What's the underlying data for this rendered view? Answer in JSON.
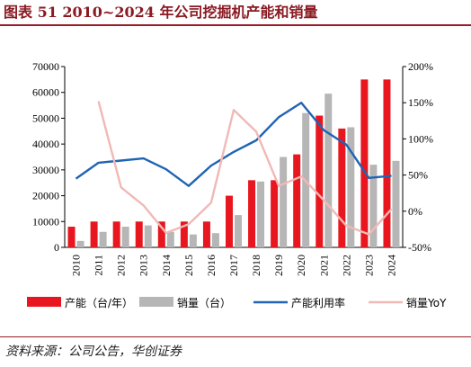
{
  "figure": {
    "title": "图表 51   2010~2024 年公司挖掘机产能和销量",
    "source": "资料来源：公司公告，华创证券"
  },
  "chart_data": {
    "type": "bar",
    "categories": [
      "2010",
      "2011",
      "2012",
      "2013",
      "2014",
      "2015",
      "2016",
      "2017",
      "2018",
      "2019",
      "2020",
      "2021",
      "2022",
      "2023",
      "2024"
    ],
    "series": [
      {
        "name": "产能（台/年）",
        "type": "bar",
        "axis": "left",
        "color": "#e8161e",
        "values": [
          8000,
          10000,
          10000,
          10000,
          10000,
          10000,
          10000,
          20000,
          26000,
          26000,
          36000,
          51000,
          46000,
          65000,
          65000
        ]
      },
      {
        "name": "销量（台）",
        "type": "bar",
        "axis": "left",
        "color": "#b6b6b6",
        "values": [
          2500,
          6000,
          8000,
          8500,
          6000,
          5000,
          5500,
          12500,
          25500,
          35000,
          52000,
          59500,
          46500,
          32000,
          33500
        ]
      },
      {
        "name": "产能利用率",
        "type": "line",
        "axis": "right",
        "color": "#1f64b4",
        "values": [
          45,
          67,
          70,
          73,
          58,
          35,
          63,
          82,
          98,
          130,
          150,
          112,
          92,
          46,
          49
        ]
      },
      {
        "name": "销量YoY",
        "type": "line",
        "axis": "right",
        "color": "#f0b9b6",
        "values": [
          null,
          152,
          33,
          8,
          -30,
          -18,
          12,
          140,
          110,
          35,
          48,
          15,
          -20,
          -32,
          3
        ]
      }
    ],
    "left_axis": {
      "min": 0,
      "max": 70000,
      "step": 10000,
      "tick_labels": [
        "0",
        "10000",
        "20000",
        "30000",
        "40000",
        "50000",
        "60000",
        "70000"
      ]
    },
    "right_axis": {
      "min": -50,
      "max": 200,
      "step": 50,
      "tick_labels": [
        "-50%",
        "0%",
        "50%",
        "100%",
        "150%",
        "200%"
      ]
    },
    "grid": false,
    "legend_position": "bottom"
  }
}
